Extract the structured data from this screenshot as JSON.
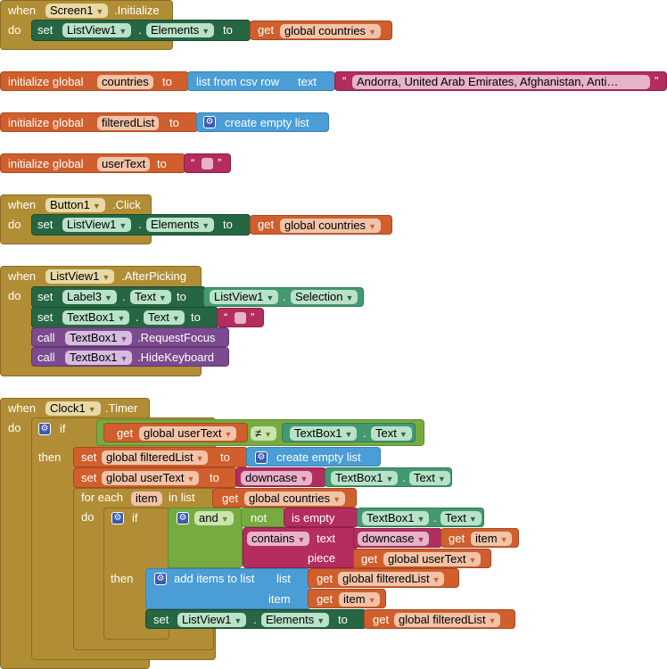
{
  "kw": {
    "when": "when",
    "do": "do",
    "set": "set",
    "get": "get",
    "to": "to",
    "call": "call",
    "if": "if",
    "then": "then",
    "for_each": "for each",
    "in_list": "in list",
    "initialize_global": "initialize global",
    "list_from_csv_row": "list from csv row",
    "text": "text",
    "create_empty_list": "create empty list",
    "downcase": "downcase",
    "and": "and",
    "not": "not",
    "is_empty": "is empty",
    "contains": "contains",
    "piece": "piece",
    "add_items_to_list": "add items to list",
    "list": "list",
    "item": "item",
    "dot": ".",
    "neq": "≠",
    "quote": "“",
    "quote_close": "”"
  },
  "components": {
    "screen1": "Screen1",
    "listview1": "ListView1",
    "button1": "Button1",
    "clock1": "Clock1",
    "label3": "Label3",
    "textbox1": "TextBox1"
  },
  "events": {
    "initialize": ".Initialize",
    "click": ".Click",
    "afterpicking": ".AfterPicking",
    "timer": ".Timer"
  },
  "props": {
    "elements": "Elements",
    "text": "Text",
    "selection": "Selection"
  },
  "methods": {
    "requestfocus": ".RequestFocus",
    "hidekeyboard": ".HideKeyboard"
  },
  "vars": {
    "global_countries": "global countries",
    "countries": "countries",
    "filteredList": "filteredList",
    "userText": "userText",
    "global_filteredList": "global filteredList",
    "global_userText": "global userText",
    "item": "item"
  },
  "csv_text": "Andorra, United Arab Emirates, Afghanistan, Anti…"
}
